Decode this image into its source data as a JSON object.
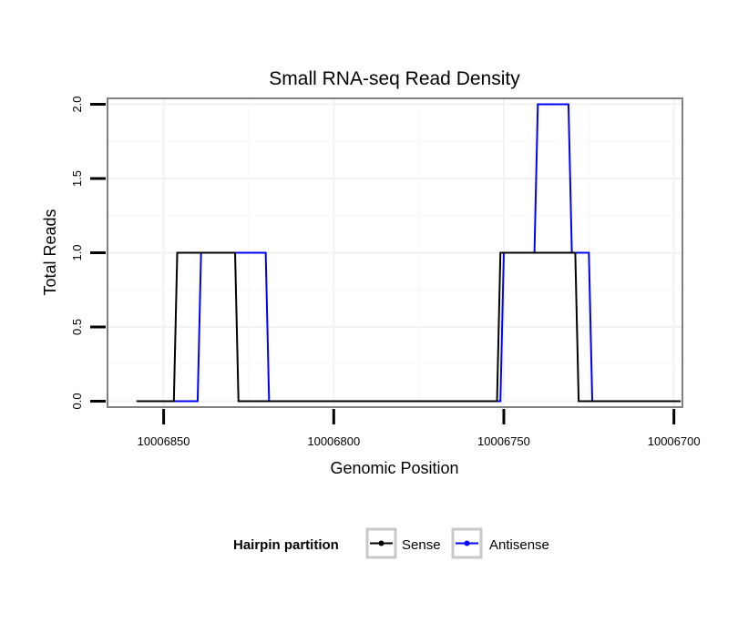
{
  "chart_data": {
    "type": "line",
    "title": "Small RNA-seq Read Density",
    "xlabel": "Genomic Position",
    "ylabel": "Total Reads",
    "xlim": [
      10006866.5,
      10006697.5
    ],
    "ylim": [
      -0.04,
      2.04
    ],
    "x_reversed": true,
    "xticks": [
      10006850,
      10006800,
      10006750,
      10006700
    ],
    "xtick_labels": [
      "10006850",
      "10006800",
      "10006750",
      "10006700"
    ],
    "yticks": [
      0,
      0.5,
      1,
      1.5,
      2
    ],
    "ytick_labels": [
      "0.0",
      "0.5",
      "1.0",
      "1.5",
      "2.0"
    ],
    "grid": true,
    "legend": {
      "title": "Hairpin partition",
      "position": "bottom",
      "entries": [
        "Sense",
        "Antisense"
      ]
    },
    "series": [
      {
        "name": "Sense",
        "color": "#000000",
        "x": [
          10006858,
          10006847,
          10006846,
          10006829,
          10006828,
          10006752,
          10006751,
          10006741,
          10006740,
          10006729,
          10006728,
          10006698
        ],
        "y": [
          0,
          0,
          1,
          1,
          0,
          0,
          1,
          1,
          1,
          1,
          0,
          0
        ]
      },
      {
        "name": "Antisense",
        "color": "#0000ff",
        "x": [
          10006847,
          10006840,
          10006839,
          10006820,
          10006819,
          10006751,
          10006750,
          10006741,
          10006740,
          10006731,
          10006730,
          10006725,
          10006724,
          10006722
        ],
        "y": [
          0,
          0,
          1,
          1,
          0,
          0,
          1,
          1,
          2,
          2,
          1,
          1,
          0,
          0
        ]
      }
    ]
  }
}
